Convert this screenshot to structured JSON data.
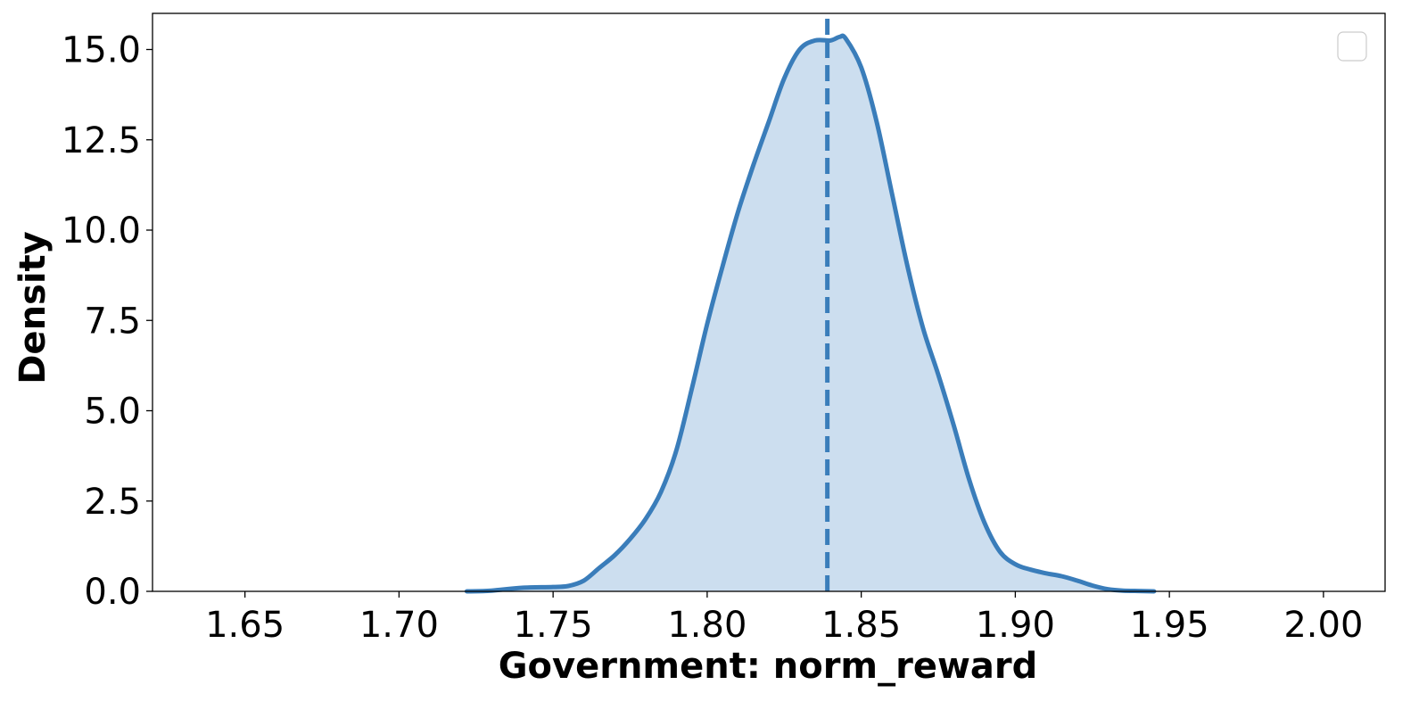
{
  "chart_data": {
    "type": "area",
    "xlabel": "Government: norm_reward",
    "ylabel": "Density",
    "xlim": [
      1.62,
      2.02
    ],
    "ylim": [
      0,
      16
    ],
    "xticks": [
      1.65,
      1.7,
      1.75,
      1.8,
      1.85,
      1.9,
      1.95,
      2.0
    ],
    "xtick_labels": [
      "1.65",
      "1.70",
      "1.75",
      "1.80",
      "1.85",
      "1.90",
      "1.95",
      "2.00"
    ],
    "yticks": [
      0,
      2.5,
      5,
      7.5,
      10,
      12.5,
      15
    ],
    "ytick_labels": [
      "0.0",
      "2.5",
      "5.0",
      "7.5",
      "10.0",
      "12.5",
      "15.0"
    ],
    "grid": false,
    "legend": {
      "placement": "top-right",
      "entries": []
    },
    "colors": {
      "line": "#3a7dba",
      "fill": "#ccdeef"
    },
    "mean_line": {
      "x": 1.839,
      "style": "dashed"
    },
    "series": [
      {
        "x": [
          1.722,
          1.73,
          1.74,
          1.75,
          1.755,
          1.76,
          1.765,
          1.77,
          1.775,
          1.78,
          1.785,
          1.79,
          1.795,
          1.8,
          1.805,
          1.81,
          1.815,
          1.82,
          1.825,
          1.83,
          1.835,
          1.84,
          1.843,
          1.845,
          1.85,
          1.855,
          1.86,
          1.865,
          1.87,
          1.875,
          1.88,
          1.885,
          1.89,
          1.895,
          1.9,
          1.905,
          1.91,
          1.915,
          1.92,
          1.925,
          1.93,
          1.935,
          1.94,
          1.945
        ],
        "y": [
          0.0,
          0.02,
          0.1,
          0.12,
          0.15,
          0.3,
          0.65,
          1.0,
          1.45,
          2.0,
          2.75,
          3.9,
          5.6,
          7.4,
          9.0,
          10.5,
          11.8,
          13.0,
          14.2,
          15.0,
          15.25,
          15.25,
          15.35,
          15.3,
          14.5,
          13.0,
          11.0,
          9.0,
          7.3,
          6.0,
          4.6,
          3.1,
          1.9,
          1.1,
          0.75,
          0.6,
          0.5,
          0.42,
          0.3,
          0.16,
          0.06,
          0.02,
          0.01,
          0.0
        ]
      }
    ]
  }
}
